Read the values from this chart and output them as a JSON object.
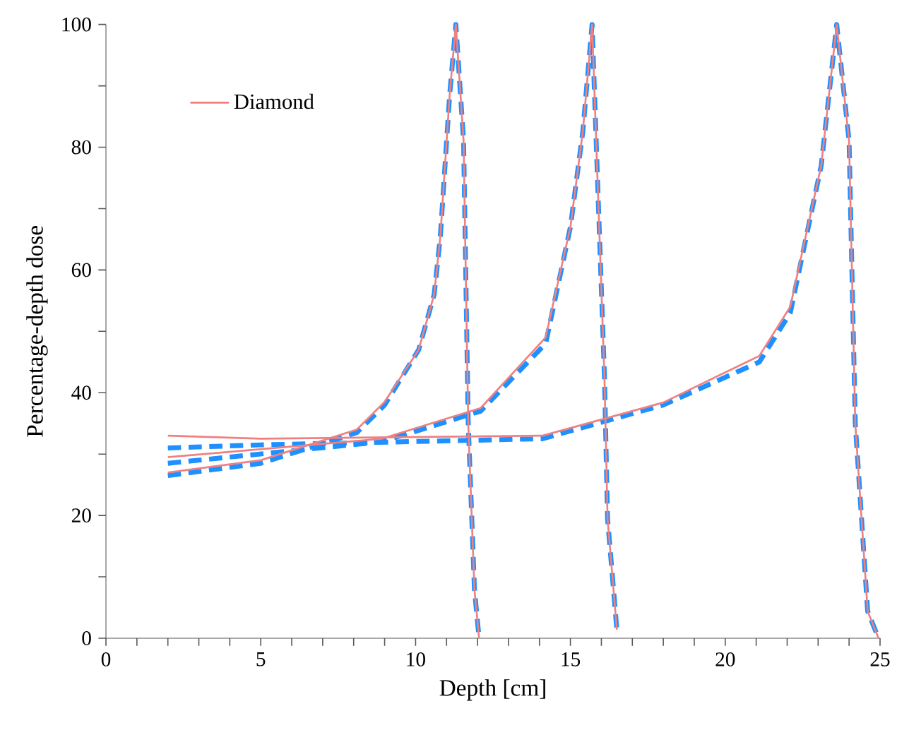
{
  "chart_data": {
    "type": "line",
    "xlabel": "Depth [cm]",
    "ylabel": "Percentage-depth dose",
    "xlim": [
      0,
      25
    ],
    "ylim": [
      0,
      100
    ],
    "xticks": [
      0,
      {
        "value": 1,
        "label": null
      },
      {
        "value": 2,
        "label": null
      },
      {
        "value": 3,
        "label": null
      },
      {
        "value": 4,
        "label": null
      },
      5,
      {
        "value": 6,
        "label": null
      },
      {
        "value": 7,
        "label": null
      },
      {
        "value": 8,
        "label": null
      },
      {
        "value": 9,
        "label": null
      },
      10,
      {
        "value": 11,
        "label": null
      },
      {
        "value": 12,
        "label": null
      },
      {
        "value": 13,
        "label": null
      },
      {
        "value": 14,
        "label": null
      },
      15,
      {
        "value": 16,
        "label": null
      },
      {
        "value": 17,
        "label": null
      },
      {
        "value": 18,
        "label": null
      },
      {
        "value": 19,
        "label": null
      },
      20,
      {
        "value": 21,
        "label": null
      },
      {
        "value": 22,
        "label": null
      },
      {
        "value": 23,
        "label": null
      },
      {
        "value": 24,
        "label": null
      },
      25
    ],
    "yticks": [
      0,
      {
        "value": 10,
        "label": null
      },
      20,
      {
        "value": 30,
        "label": null
      },
      40,
      {
        "value": 50,
        "label": null
      },
      60,
      {
        "value": 70,
        "label": null
      },
      80,
      {
        "value": 90,
        "label": null
      },
      100
    ],
    "grid": false,
    "legend": "top left",
    "marker": "none",
    "series": [
      {
        "color": "#1e90ff",
        "line_style": "dashed",
        "x": [
          2,
          5,
          8.1,
          9,
          10.1,
          10.6,
          10.8,
          11.1,
          11.3,
          11.55,
          11.7,
          11.9,
          12.05
        ],
        "values": [
          26.5,
          28.5,
          33.5,
          38,
          47,
          56,
          65.5,
          88.5,
          100,
          81,
          35,
          8,
          0
        ]
      },
      {
        "color": "#1e90ff",
        "line_style": "dashed",
        "x": [
          2,
          8.9,
          12.1,
          14.2,
          15,
          15.4,
          15.7,
          16.1,
          16.2,
          16.5
        ],
        "values": [
          28.5,
          32,
          37,
          48,
          67,
          82.5,
          100,
          42.5,
          19.5,
          1.4
        ]
      },
      {
        "color": "#1e90ff",
        "line_style": "dashed",
        "x": [
          2,
          5,
          14.1,
          18,
          21.1,
          22.1,
          23.1,
          23.6,
          24,
          24.2,
          24.6,
          24.95
        ],
        "values": [
          31,
          31.5,
          32.5,
          38,
          45,
          53,
          77,
          100,
          81,
          35,
          4.4,
          0
        ]
      },
      {
        "name": "Diamond",
        "color": "#f08080",
        "line_style": "solid",
        "x": [
          2,
          5,
          8.1,
          9,
          10.1,
          10.6,
          10.8,
          11.1,
          11.3,
          11.55,
          11.7,
          11.9,
          12.05
        ],
        "values": [
          27,
          29,
          34,
          38.5,
          47,
          56,
          65.5,
          88.5,
          100,
          81,
          35,
          8,
          0
        ]
      },
      {
        "color": "#f08080",
        "line_style": "solid",
        "x": [
          2,
          8.9,
          12.1,
          14.2,
          15,
          15.4,
          15.7,
          16.1,
          16.2,
          16.5
        ],
        "values": [
          29.5,
          32.5,
          37.5,
          49,
          67,
          82.5,
          100,
          42.5,
          19.5,
          1.4
        ]
      },
      {
        "color": "#f08080",
        "line_style": "solid",
        "x": [
          2,
          5,
          14.1,
          18,
          21.1,
          22.1,
          23.1,
          23.6,
          24,
          24.2,
          24.6,
          24.95
        ],
        "values": [
          33,
          32.5,
          33,
          38.4,
          46,
          54,
          77,
          100,
          81,
          35,
          4.4,
          0
        ]
      }
    ]
  }
}
